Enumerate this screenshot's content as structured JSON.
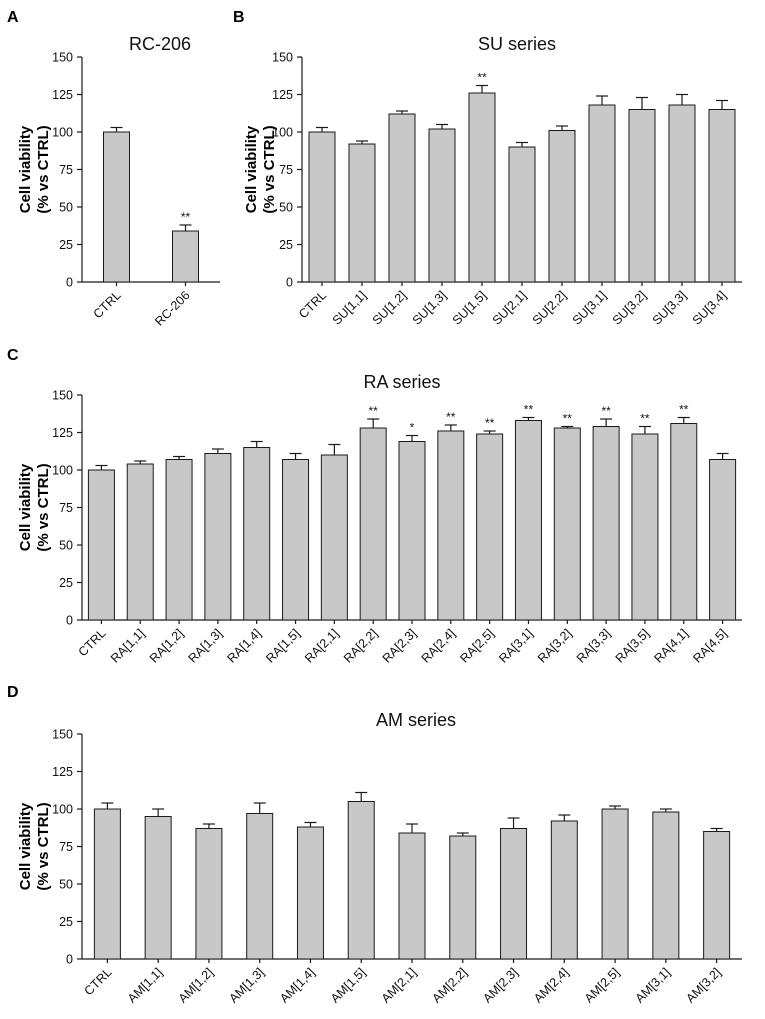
{
  "chart_data": [
    {
      "panel": "A",
      "type": "bar",
      "title": "RC-206",
      "ylabel": [
        "Cell viability",
        "(% vs CTRL)"
      ],
      "ylim": [
        0,
        150
      ],
      "yticks": [
        0,
        25,
        50,
        75,
        100,
        125,
        150
      ],
      "categories": [
        "CTRL",
        "RC-206"
      ],
      "values": [
        100,
        34
      ],
      "errors": [
        3,
        4
      ],
      "significance": [
        "",
        "**"
      ]
    },
    {
      "panel": "B",
      "type": "bar",
      "title": "SU series",
      "ylabel": [
        "Cell viability",
        "(% vs CTRL)"
      ],
      "ylim": [
        0,
        150
      ],
      "yticks": [
        0,
        25,
        50,
        75,
        100,
        125,
        150
      ],
      "categories": [
        "CTRL",
        "SU[1,1]",
        "SU[1,2]",
        "SU[1,3]",
        "SU[1,5]",
        "SU[2,1]",
        "SU[2,2]",
        "SU[3,1]",
        "SU[3,2]",
        "SU[3,3]",
        "SU[3,4]"
      ],
      "values": [
        100,
        92,
        112,
        102,
        126,
        90,
        101,
        118,
        115,
        118,
        115
      ],
      "errors": [
        3,
        2,
        2,
        3,
        5,
        3,
        3,
        6,
        8,
        7,
        6
      ],
      "significance": [
        "",
        "",
        "",
        "",
        "**",
        "",
        "",
        "",
        "",
        "",
        ""
      ]
    },
    {
      "panel": "C",
      "type": "bar",
      "title": "RA series",
      "ylabel": [
        "Cell viability",
        "(% vs CTRL)"
      ],
      "ylim": [
        0,
        150
      ],
      "yticks": [
        0,
        25,
        50,
        75,
        100,
        125,
        150
      ],
      "categories": [
        "CTRL",
        "RA[1,1]",
        "RA[1,2]",
        "RA[1,3]",
        "RA[1,4]",
        "RA[1,5]",
        "RA[2,1]",
        "RA[2,2]",
        "RA[2,3]",
        "RA[2,4]",
        "RA[2,5]",
        "RA[3,1]",
        "RA[3,2]",
        "RA[3,3]",
        "RA[3,5]",
        "RA[4,1]",
        "RA[4,5]"
      ],
      "values": [
        100,
        104,
        107,
        111,
        115,
        107,
        110,
        128,
        119,
        126,
        124,
        133,
        128,
        129,
        124,
        131,
        107
      ],
      "errors": [
        3,
        2,
        2,
        3,
        4,
        4,
        7,
        6,
        4,
        4,
        2,
        2,
        1,
        5,
        5,
        4,
        4
      ],
      "significance": [
        "",
        "",
        "",
        "",
        "",
        "",
        "",
        "**",
        "*",
        "**",
        "**",
        "**",
        "**",
        "**",
        "**",
        "**",
        ""
      ]
    },
    {
      "panel": "D",
      "type": "bar",
      "title": "AM series",
      "ylabel": [
        "Cell viability",
        "(% vs CTRL)"
      ],
      "ylim": [
        0,
        150
      ],
      "yticks": [
        0,
        25,
        50,
        75,
        100,
        125,
        150
      ],
      "categories": [
        "CTRL",
        "AM[1,1]",
        "AM[1,2]",
        "AM[1,3]",
        "AM[1,4]",
        "AM[1,5]",
        "AM[2,1]",
        "AM[2,2]",
        "AM[2,3]",
        "AM[2,4]",
        "AM[2,5]",
        "AM[3,1]",
        "AM[3,2]"
      ],
      "values": [
        100,
        95,
        87,
        97,
        88,
        105,
        84,
        82,
        87,
        92,
        100,
        98,
        85
      ],
      "errors": [
        4,
        5,
        3,
        7,
        3,
        6,
        6,
        2,
        7,
        4,
        2,
        2,
        2
      ],
      "significance": [
        "",
        "",
        "",
        "",
        "",
        "",
        "",
        "",
        "",
        "",
        "",
        "",
        ""
      ]
    }
  ]
}
